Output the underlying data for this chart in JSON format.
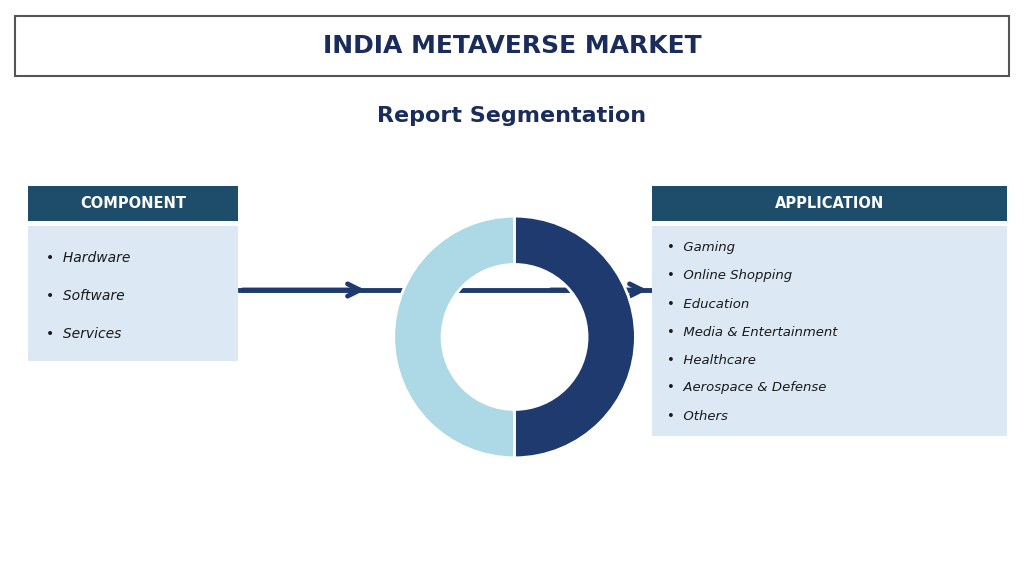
{
  "title": "INDIA METAVERSE MARKET",
  "subtitle": "Report Segmentation",
  "background_color": "#ffffff",
  "title_box_color": "#ffffff",
  "title_border_color": "#555555",
  "title_text_color": "#1a2c5b",
  "subtitle_text_color": "#1a2c5b",
  "dark_blue": "#1e3a6e",
  "light_blue": "#add8e6",
  "header_bg": "#1e4d6b",
  "list_bg": "#dce9f5",
  "left_label": "COMPONENT",
  "left_items": [
    "Hardware",
    "Software",
    "Services"
  ],
  "right_label": "APPLICATION",
  "right_items": [
    "Gaming",
    "Online Shopping",
    "Education",
    "Media & Entertainment",
    "Healthcare",
    "Aerospace & Defense",
    "Others"
  ],
  "donut_colors": [
    "#add8e6",
    "#1e3a6e"
  ],
  "arrow_color": "#1e3a6e"
}
